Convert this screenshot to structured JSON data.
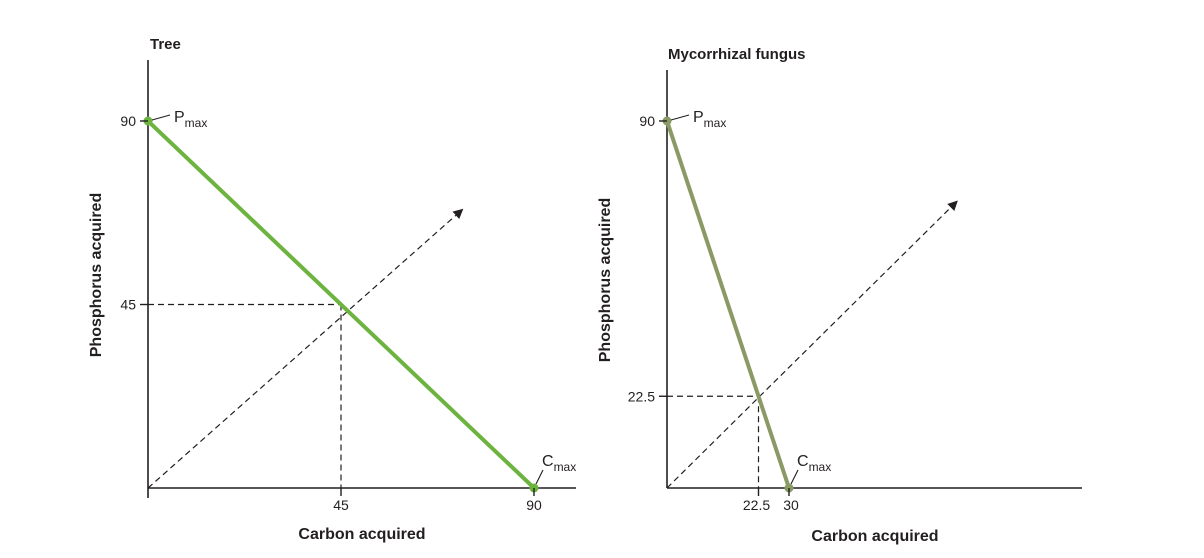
{
  "chart_data": [
    {
      "type": "line",
      "title": "Tree",
      "xlabel": "Carbon acquired",
      "ylabel": "Phosphorus acquired",
      "xlim": [
        0,
        98
      ],
      "ylim": [
        0,
        90
      ],
      "x_ticks": [
        {
          "value": 45,
          "label": "45"
        },
        {
          "value": 90,
          "label": "90"
        }
      ],
      "y_ticks": [
        {
          "value": 45,
          "label": "45"
        },
        {
          "value": 90,
          "label": "90"
        }
      ],
      "series": [
        {
          "values": [
            {
              "x": 0,
              "y": 90
            },
            {
              "x": 90,
              "y": 0
            }
          ],
          "color": "#6db33f"
        }
      ],
      "annotations": [
        {
          "x": 0,
          "y": 90,
          "label": "P",
          "sub": "max"
        },
        {
          "x": 90,
          "y": 0,
          "label": "C",
          "sub": "max"
        }
      ],
      "reference_point": {
        "x": 45,
        "y": 45
      },
      "diagonal_arrow": {
        "from": {
          "x": 0,
          "y": 0
        },
        "to": {
          "x": 73,
          "y": 68
        }
      },
      "grid": false
    },
    {
      "type": "line",
      "title": "Mycorrhizal fungus",
      "xlabel": "Carbon acquired",
      "ylabel": "Phosphorus acquired",
      "xlim": [
        0,
        104
      ],
      "ylim": [
        0,
        90
      ],
      "x_ticks": [
        {
          "value": 22.5,
          "label": "22.5"
        },
        {
          "value": 30,
          "label": "30"
        }
      ],
      "y_ticks": [
        {
          "value": 22.5,
          "label": "22.5"
        },
        {
          "value": 90,
          "label": "90"
        }
      ],
      "series": [
        {
          "values": [
            {
              "x": 0,
              "y": 90
            },
            {
              "x": 30,
              "y": 0
            }
          ],
          "color": "#8a9a65"
        }
      ],
      "annotations": [
        {
          "x": 0,
          "y": 90,
          "label": "P",
          "sub": "max"
        },
        {
          "x": 30,
          "y": 0,
          "label": "C",
          "sub": "max"
        }
      ],
      "reference_point": {
        "x": 22.5,
        "y": 22.5
      },
      "diagonal_arrow": {
        "from": {
          "x": 0,
          "y": 0
        },
        "to": {
          "x": 71,
          "y": 70
        }
      },
      "grid": false
    }
  ]
}
